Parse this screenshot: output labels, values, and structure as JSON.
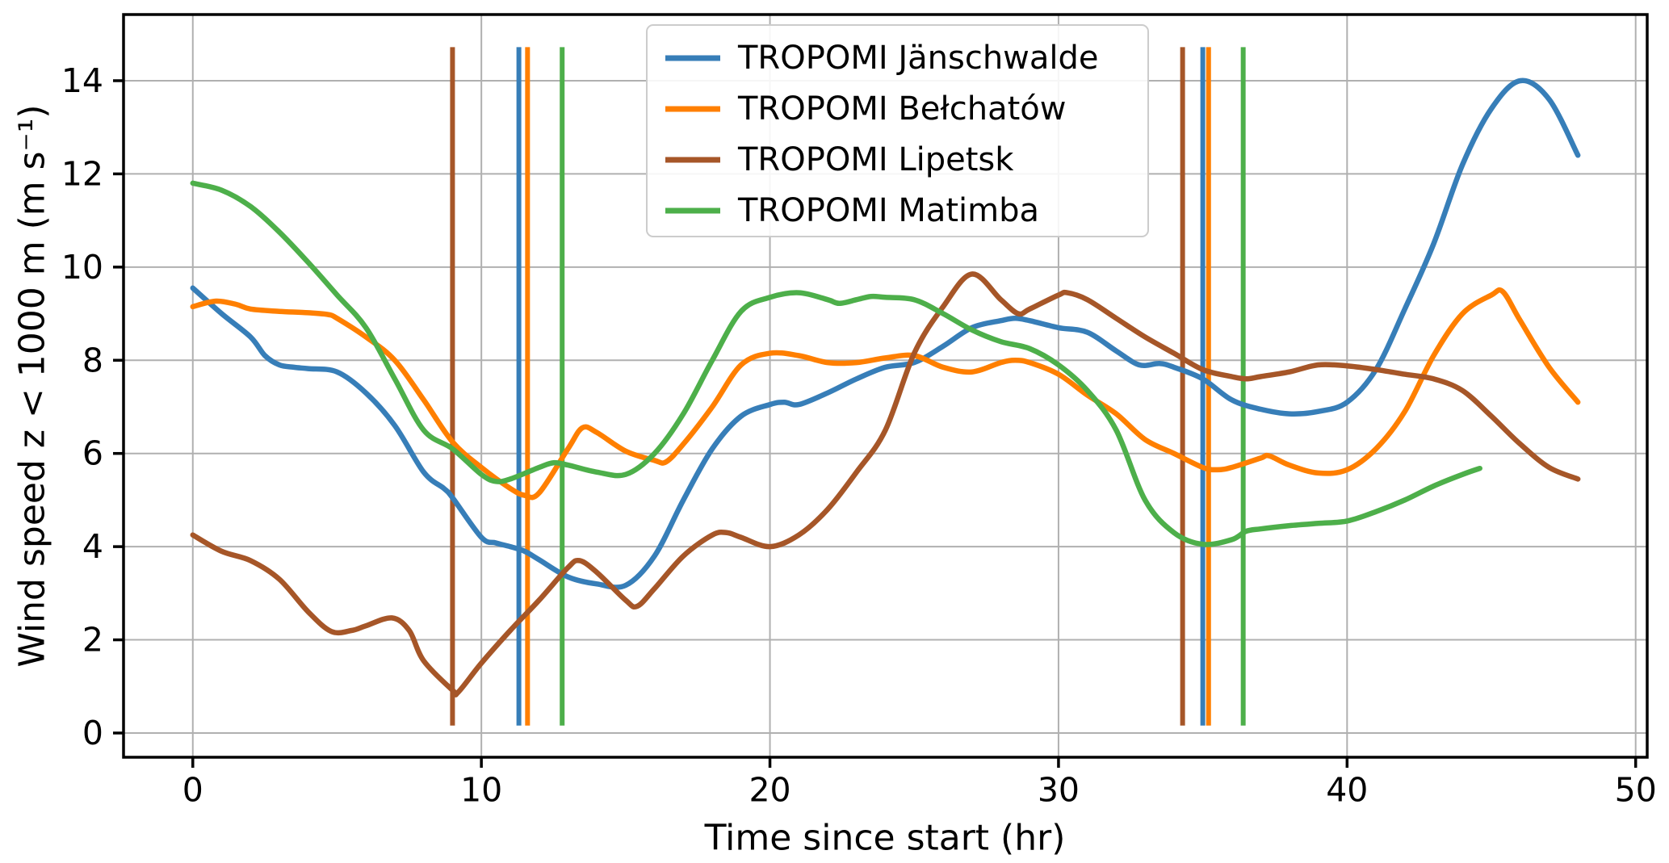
{
  "chart_data": {
    "type": "line",
    "title": "",
    "xlabel": "Time since start (hr)",
    "ylabel": "Wind speed z < 1000 m (m s⁻¹)",
    "xlim": [
      -2.4,
      50.4
    ],
    "ylim": [
      -0.52,
      15.42
    ],
    "xticks": [
      0,
      10,
      20,
      30,
      40,
      50
    ],
    "yticks": [
      0,
      2,
      4,
      6,
      8,
      10,
      12,
      14
    ],
    "grid": true,
    "grid_color": "#b0b0b0",
    "background": "#ffffff",
    "spine_color": "#000000",
    "legend": {
      "position": "upper center",
      "entries": [
        "TROPOMI Jänschwalde",
        "TROPOMI Bełchatów",
        "TROPOMI Lipetsk",
        "TROPOMI Matimba"
      ],
      "border_color": "#cccccc",
      "fill": "#ffffff"
    },
    "series": [
      {
        "name": "TROPOMI Jänschwalde",
        "color": "#377eb8",
        "x": [
          0,
          1,
          2,
          2.5,
          3,
          3.5,
          4,
          5,
          6,
          7,
          8,
          8.7,
          9,
          10,
          10.5,
          11,
          11.5,
          12,
          13,
          14,
          15,
          16,
          17,
          18,
          19,
          20,
          20.5,
          21,
          22,
          23,
          24,
          25,
          26,
          27,
          28,
          28.5,
          29,
          30,
          31,
          32,
          32.8,
          33.5,
          34,
          35,
          36,
          37,
          38,
          39,
          40,
          41,
          42,
          43,
          44,
          45,
          46,
          47,
          48
        ],
        "y": [
          9.55,
          9.0,
          8.5,
          8.1,
          7.9,
          7.85,
          7.82,
          7.75,
          7.3,
          6.6,
          5.6,
          5.25,
          5.05,
          4.2,
          4.08,
          4.0,
          3.9,
          3.72,
          3.35,
          3.2,
          3.17,
          3.8,
          5.0,
          6.1,
          6.8,
          7.05,
          7.1,
          7.05,
          7.3,
          7.6,
          7.85,
          7.95,
          8.3,
          8.7,
          8.85,
          8.9,
          8.85,
          8.7,
          8.6,
          8.2,
          7.9,
          7.93,
          7.85,
          7.6,
          7.15,
          6.95,
          6.85,
          6.9,
          7.1,
          7.8,
          9.1,
          10.5,
          12.2,
          13.4,
          14.0,
          13.6,
          12.4
        ]
      },
      {
        "name": "TROPOMI Bełchatów",
        "color": "#ff7f00",
        "x": [
          0,
          0.8,
          1.5,
          2,
          3,
          4,
          4.7,
          5,
          6,
          7,
          8,
          9,
          10,
          11,
          11.5,
          12,
          13,
          13.5,
          14,
          15,
          16,
          16.4,
          17,
          18,
          19,
          20,
          21,
          22,
          23,
          24,
          25,
          26,
          27,
          28,
          28.5,
          29,
          30,
          31,
          32,
          33,
          34,
          35,
          35.5,
          36,
          37,
          37.3,
          38,
          39,
          40,
          41,
          42,
          43,
          44,
          45,
          45.4,
          46,
          47,
          48
        ],
        "y": [
          9.15,
          9.27,
          9.2,
          9.1,
          9.05,
          9.02,
          8.98,
          8.9,
          8.5,
          8.0,
          7.15,
          6.25,
          5.7,
          5.25,
          5.1,
          5.15,
          6.1,
          6.55,
          6.45,
          6.05,
          5.85,
          5.82,
          6.2,
          7.0,
          7.9,
          8.15,
          8.1,
          7.95,
          7.95,
          8.05,
          8.1,
          7.85,
          7.75,
          7.95,
          8.0,
          7.95,
          7.7,
          7.25,
          6.85,
          6.3,
          6.0,
          5.7,
          5.65,
          5.7,
          5.9,
          5.95,
          5.75,
          5.58,
          5.65,
          6.1,
          6.9,
          8.1,
          9.0,
          9.4,
          9.47,
          8.85,
          7.85,
          7.1
        ]
      },
      {
        "name": "TROPOMI Lipetsk",
        "color": "#a65628",
        "x": [
          0,
          1,
          2,
          3,
          4,
          4.8,
          5.5,
          6,
          6.9,
          7.5,
          8,
          9,
          9.2,
          10,
          11,
          12,
          13,
          13.4,
          14,
          15,
          15.4,
          16,
          17,
          18,
          18.5,
          19,
          20,
          21,
          22,
          23,
          24,
          25,
          26,
          27,
          28,
          28.6,
          29,
          30,
          30.3,
          31,
          32,
          33,
          34,
          35,
          36,
          36.5,
          37,
          38,
          39,
          40,
          41,
          42,
          43,
          44,
          45,
          46,
          47,
          48
        ],
        "y": [
          4.25,
          3.9,
          3.7,
          3.3,
          2.6,
          2.18,
          2.2,
          2.3,
          2.47,
          2.2,
          1.55,
          0.92,
          0.88,
          1.5,
          2.2,
          2.85,
          3.55,
          3.7,
          3.45,
          2.85,
          2.72,
          3.1,
          3.8,
          4.25,
          4.3,
          4.2,
          4.0,
          4.25,
          4.8,
          5.6,
          6.5,
          8.15,
          9.15,
          9.85,
          9.3,
          9.0,
          9.1,
          9.4,
          9.45,
          9.3,
          8.9,
          8.5,
          8.15,
          7.8,
          7.65,
          7.6,
          7.65,
          7.75,
          7.9,
          7.88,
          7.8,
          7.7,
          7.6,
          7.35,
          6.8,
          6.2,
          5.7,
          5.45
        ]
      },
      {
        "name": "TROPOMI Matimba",
        "color": "#4daf4a",
        "x": [
          0,
          1,
          2,
          3,
          4,
          5,
          6,
          7,
          8,
          9,
          10,
          10.5,
          11,
          12,
          12.5,
          13,
          14,
          15,
          16,
          17,
          18,
          19,
          20,
          21,
          22,
          22.4,
          23,
          23.5,
          24,
          25,
          26,
          27,
          28,
          29,
          30,
          31,
          32,
          33,
          34,
          35,
          36,
          36.5,
          37,
          38,
          39,
          40,
          41,
          42,
          43,
          44,
          44.6
        ],
        "y": [
          11.8,
          11.65,
          11.3,
          10.75,
          10.1,
          9.4,
          8.7,
          7.6,
          6.5,
          6.1,
          5.55,
          5.4,
          5.45,
          5.7,
          5.8,
          5.75,
          5.6,
          5.55,
          6.0,
          6.85,
          8.0,
          9.05,
          9.35,
          9.45,
          9.3,
          9.22,
          9.3,
          9.37,
          9.35,
          9.3,
          9.0,
          8.65,
          8.4,
          8.25,
          7.9,
          7.35,
          6.5,
          5.0,
          4.3,
          4.05,
          4.15,
          4.33,
          4.38,
          4.45,
          4.5,
          4.55,
          4.75,
          5.0,
          5.3,
          5.55,
          5.68
        ]
      }
    ],
    "overpass_vlines": [
      {
        "series": "TROPOMI Lipetsk",
        "color": "#a65628",
        "x": 9.0
      },
      {
        "series": "TROPOMI Jänschwalde",
        "color": "#377eb8",
        "x": 11.3
      },
      {
        "series": "TROPOMI Bełchatów",
        "color": "#ff7f00",
        "x": 11.6
      },
      {
        "series": "TROPOMI Matimba",
        "color": "#4daf4a",
        "x": 12.8
      },
      {
        "series": "TROPOMI Lipetsk",
        "color": "#a65628",
        "x": 34.3
      },
      {
        "series": "TROPOMI Jänschwalde",
        "color": "#377eb8",
        "x": 35.0
      },
      {
        "series": "TROPOMI Bełchatów",
        "color": "#ff7f00",
        "x": 35.2
      },
      {
        "series": "TROPOMI Matimba",
        "color": "#4daf4a",
        "x": 36.4
      }
    ],
    "vline_span": [
      0.16,
      14.72
    ]
  }
}
